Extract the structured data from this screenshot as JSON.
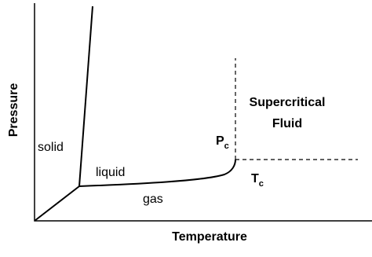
{
  "axes": {
    "y_label": "Pressure",
    "x_label": "Temperature"
  },
  "regions": {
    "solid": "solid",
    "liquid": "liquid",
    "gas": "gas",
    "supercritical": [
      "Supercritical",
      "Fluid"
    ]
  },
  "critical_point": {
    "pressure": {
      "main": "P",
      "sub": "c"
    },
    "temperature": {
      "main": "T",
      "sub": "c"
    }
  }
}
